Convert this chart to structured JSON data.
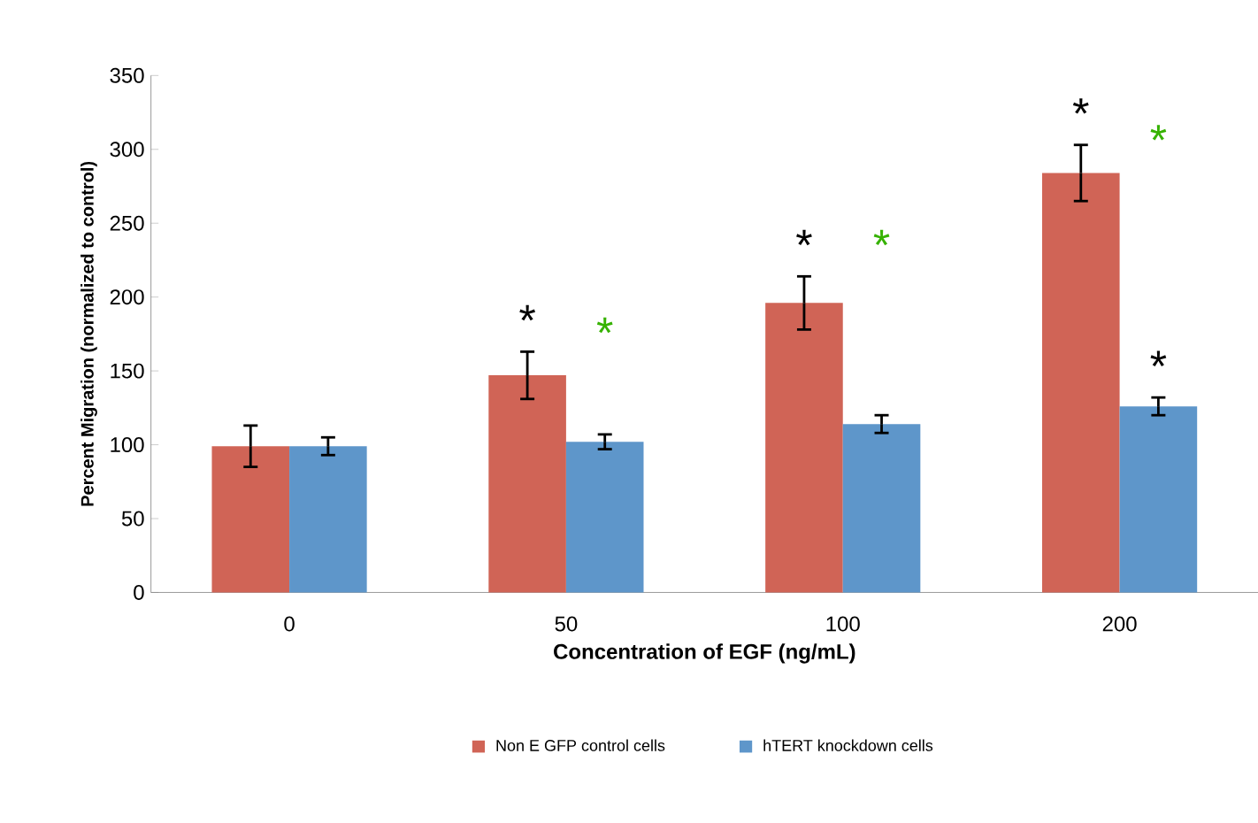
{
  "chart_data": {
    "type": "bar",
    "xlabel": "Concentration of EGF (ng/mL)",
    "ylabel": "Percent Migration (normalized to control)",
    "categories": [
      "0",
      "50",
      "100",
      "200"
    ],
    "series": [
      {
        "name": "Non E GFP control cells",
        "color": "#d06456",
        "values": [
          99,
          147,
          196,
          284
        ],
        "errors": [
          14,
          16,
          18,
          19
        ]
      },
      {
        "name": "hTERT knockdown cells",
        "color": "#5e96ca",
        "values": [
          99,
          102,
          114,
          126
        ],
        "errors": [
          6,
          5,
          6,
          6
        ]
      }
    ],
    "annotations": [
      "*",
      "*",
      "*",
      "*",
      "*",
      "*",
      "*"
    ],
    "ylim": [
      0,
      350
    ],
    "yticks": [
      0,
      50,
      100,
      150,
      200,
      250,
      300,
      350
    ],
    "grid": false,
    "legend": "bottom"
  }
}
